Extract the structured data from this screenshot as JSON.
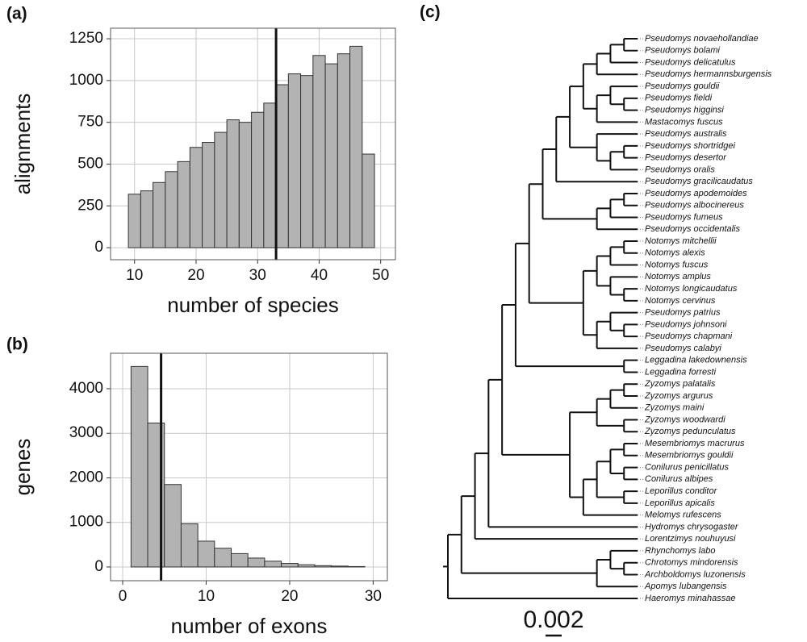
{
  "chart_data": [
    {
      "type": "histogram",
      "title": "(a)",
      "x_label": "number of species",
      "y_label": "alignments",
      "bins": [
        9,
        11,
        13,
        15,
        17,
        19,
        21,
        23,
        25,
        27,
        29,
        31,
        33,
        35,
        37,
        39,
        41,
        43,
        45,
        47,
        49
      ],
      "values": [
        320,
        340,
        390,
        455,
        515,
        600,
        630,
        690,
        765,
        750,
        810,
        865,
        975,
        1040,
        1030,
        1150,
        1100,
        1160,
        1205,
        560
      ],
      "color": "#b3b3b3",
      "vline": 33,
      "xlim": [
        6.1,
        52.4
      ],
      "ylim": [
        -72,
        1313
      ],
      "xticks": [
        10,
        20,
        30,
        40,
        50
      ],
      "yticks": [
        0,
        250,
        500,
        750,
        1000,
        1250
      ],
      "grid": true
    },
    {
      "type": "histogram",
      "title": "(b)",
      "x_label": "number of exons",
      "y_label": "genes",
      "bins": [
        1,
        3,
        5,
        7,
        9,
        11,
        13,
        15,
        17,
        19,
        21,
        23,
        25,
        27,
        29
      ],
      "values": [
        4500,
        3230,
        1850,
        970,
        580,
        420,
        300,
        200,
        130,
        80,
        50,
        30,
        20,
        10
      ],
      "color": "#b3b3b3",
      "vline": 4.6,
      "xlim": [
        -1.45,
        31.7
      ],
      "ylim": [
        -308,
        4796
      ],
      "xticks": [
        0,
        10,
        20,
        30
      ],
      "yticks": [
        0,
        1000,
        2000,
        3000,
        4000
      ],
      "grid": true
    }
  ],
  "tree": {
    "title": "(c)",
    "scale_label": "0.002",
    "leaves": [
      "Pseudomys novaehollandiae",
      "Pseudomys bolami",
      "Pseudomys delicatulus",
      "Pseudomys hermannsburgensis",
      "Pseudomys gouldii",
      "Pseudomys fieldi",
      "Pseudomys higginsi",
      "Mastacomys fuscus",
      "Pseudomys australis",
      "Pseudomys shortridgei",
      "Pseudomys desertor",
      "Pseudomys oralis",
      "Pseudomys gracilicaudatus",
      "Pseudomys apodemoides",
      "Pseudomys albocinereus",
      "Pseudomys fumeus",
      "Pseudomys occidentalis",
      "Notomys mitchellii",
      "Notomys alexis",
      "Notomys fuscus",
      "Notomys amplus",
      "Notomys longicaudatus",
      "Notomys cervinus",
      "Pseudomys patrius",
      "Pseudomys johnsoni",
      "Pseudomys chapmani",
      "Pseudomys calabyi",
      "Leggadina lakedownensis",
      "Leggadina forresti",
      "Zyzomys palatalis",
      "Zyzomys argurus",
      "Zyzomys maini",
      "Zyzomys woodwardi",
      "Zyzomys pedunculatus",
      "Mesembriomys macrurus",
      "Mesembriomys gouldii",
      "Conilurus penicillatus",
      "Conilurus albipes",
      "Leporillus conditor",
      "Leporillus apicalis",
      "Melomys rufescens",
      "Hydromys chrysogaster",
      "Lorentzimys nouhuyusi",
      "Rhynchomys labo",
      "Chrotomys mindorensis",
      "Archboldomys luzonensis",
      "Apomys lubangensis",
      "Haeromys minahassae"
    ]
  }
}
